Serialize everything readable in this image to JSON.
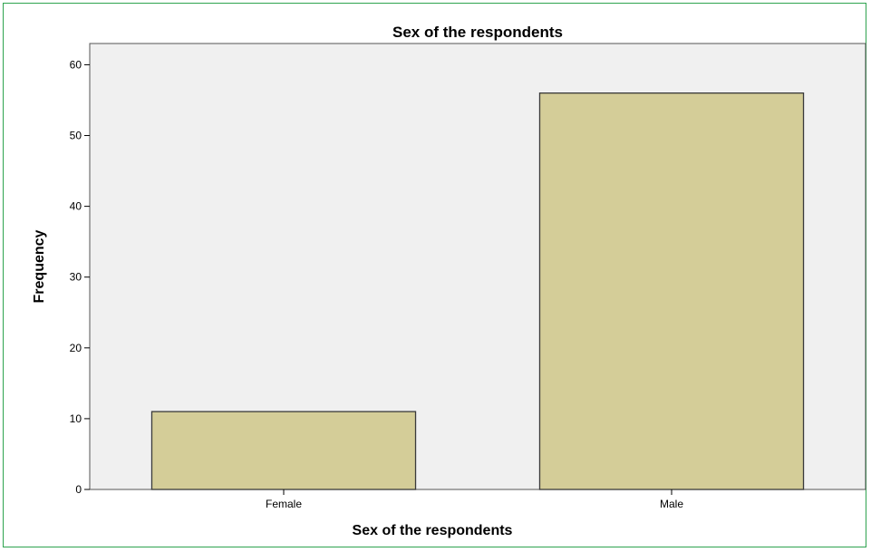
{
  "chart_data": {
    "type": "bar",
    "title": "Sex of the respondents",
    "xlabel": "Sex of the respondents",
    "ylabel": "Frequency",
    "categories": [
      "Female",
      "Male"
    ],
    "values": [
      11,
      56
    ],
    "ylim": [
      0,
      63
    ],
    "yticks": [
      "0",
      "10",
      "20",
      "30",
      "40",
      "50",
      "60"
    ],
    "grid": false,
    "legend": "none",
    "colors": {
      "bar_fill": "#d4cd98",
      "bar_stroke": "#3a3a3a",
      "plot_background": "#f0f0f0",
      "frame_border": "#2ea34f"
    }
  }
}
